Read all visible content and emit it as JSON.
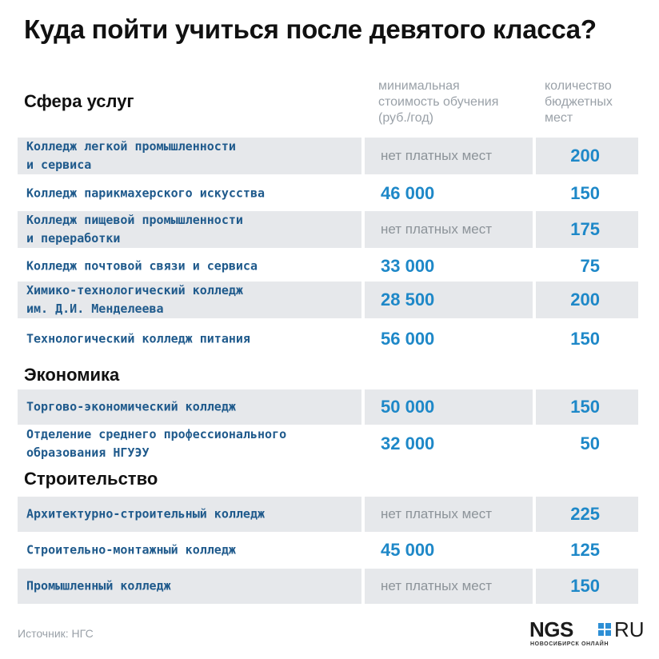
{
  "title": "Куда пойти учиться после девятого класса?",
  "columns": {
    "price": "минимальная\nстоимость обучения\n(руб./год)",
    "seats": "количество\nбюджетных\nмест"
  },
  "sections": [
    {
      "name": "Сфера услуг",
      "rows": [
        {
          "name": "Колледж легкой промышленности\nи сервиса",
          "price": "нет платных мест",
          "seats": "200"
        },
        {
          "name": "Колледж парикмахерского искусства",
          "price": "46 000",
          "seats": "150"
        },
        {
          "name": "Колледж пищевой промышленности\nи переработки",
          "price": "нет платных мест",
          "seats": "175"
        },
        {
          "name": "Колледж почтовой связи и сервиса",
          "price": "33 000",
          "seats": "75"
        },
        {
          "name": "Химико-технологический колледж\nим. Д.И. Менделеева",
          "price": "28 500",
          "seats": "200"
        },
        {
          "name": "Технологический колледж питания",
          "price": "56 000",
          "seats": "150"
        }
      ]
    },
    {
      "name": "Экономика",
      "rows": [
        {
          "name": "Торгово-экономический колледж",
          "price": "50 000",
          "seats": "150"
        },
        {
          "name": "Отделение среднего профессионального\nобразования НГУЭУ",
          "price": "32 000",
          "seats": "50"
        }
      ]
    },
    {
      "name": "Строительство",
      "rows": [
        {
          "name": "Архитектурно-строительный колледж",
          "price": "нет платных мест",
          "seats": "225"
        },
        {
          "name": "Строительно-монтажный колледж",
          "price": "45 000",
          "seats": "125"
        },
        {
          "name": "Промышленный колледж",
          "price": "нет платных мест",
          "seats": "150"
        }
      ]
    }
  ],
  "source": "Источник: НГС",
  "logo": {
    "main": "NGS",
    "ru": "RU",
    "sub": "НОВОСИБИРСК ОНЛАЙН"
  },
  "colors": {
    "accent": "#1e88c8",
    "name_text": "#1f5a8c",
    "shade": "#e6e8eb",
    "muted": "#9aa1a8"
  }
}
